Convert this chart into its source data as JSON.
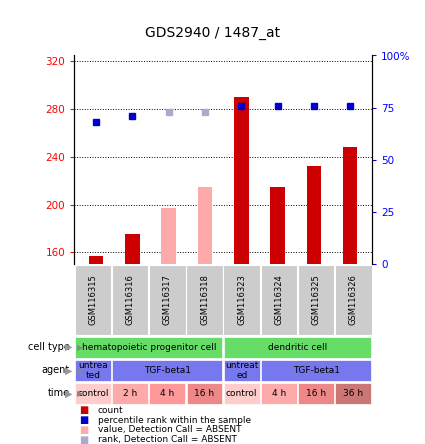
{
  "title": "GDS2940 / 1487_at",
  "samples": [
    "GSM116315",
    "GSM116316",
    "GSM116317",
    "GSM116318",
    "GSM116323",
    "GSM116324",
    "GSM116325",
    "GSM116326"
  ],
  "bar_values": [
    157,
    175,
    197,
    215,
    290,
    215,
    232,
    248
  ],
  "bar_absent": [
    false,
    false,
    true,
    true,
    false,
    false,
    false,
    false
  ],
  "rank_values": [
    68,
    71,
    73,
    73,
    76,
    76,
    76,
    76
  ],
  "rank_absent": [
    false,
    false,
    true,
    true,
    false,
    false,
    false,
    false
  ],
  "ylim_left": [
    150,
    325
  ],
  "ylim_right": [
    0,
    100
  ],
  "yticks_left": [
    160,
    200,
    240,
    280,
    320
  ],
  "ytick_labels_left": [
    "160",
    "200",
    "240",
    "280",
    "320"
  ],
  "yticks_right": [
    0,
    25,
    50,
    75,
    100
  ],
  "ytick_labels_right": [
    "0",
    "25",
    "50",
    "75",
    "100%"
  ],
  "bar_color_present": "#cc0000",
  "bar_color_absent": "#ffaaaa",
  "rank_color_present": "#0000cc",
  "rank_color_absent": "#aaaacc",
  "cell_type_groups": [
    {
      "text": "hematopoietic progenitor cell",
      "span": 4,
      "color": "#66dd66"
    },
    {
      "text": "dendritic cell",
      "span": 4,
      "color": "#66dd66"
    }
  ],
  "agent_groups": [
    {
      "text": "untrea\nted",
      "span": 1,
      "color": "#7777ee"
    },
    {
      "text": "TGF-beta1",
      "span": 3,
      "color": "#7777ee"
    },
    {
      "text": "untreat\ned",
      "span": 1,
      "color": "#7777ee"
    },
    {
      "text": "TGF-beta1",
      "span": 3,
      "color": "#7777ee"
    }
  ],
  "time_groups": [
    {
      "text": "control",
      "span": 1,
      "color": "#ffcccc"
    },
    {
      "text": "2 h",
      "span": 1,
      "color": "#ffaaaa"
    },
    {
      "text": "4 h",
      "span": 1,
      "color": "#ff9999"
    },
    {
      "text": "16 h",
      "span": 1,
      "color": "#ee8888"
    },
    {
      "text": "control",
      "span": 1,
      "color": "#ffcccc"
    },
    {
      "text": "4 h",
      "span": 1,
      "color": "#ffaaaa"
    },
    {
      "text": "16 h",
      "span": 1,
      "color": "#ee8888"
    },
    {
      "text": "36 h",
      "span": 1,
      "color": "#cc7777"
    }
  ],
  "legend_items": [
    {
      "color": "#cc0000",
      "label": "count"
    },
    {
      "color": "#0000cc",
      "label": "percentile rank within the sample"
    },
    {
      "color": "#ffaaaa",
      "label": "value, Detection Call = ABSENT"
    },
    {
      "color": "#aaaacc",
      "label": "rank, Detection Call = ABSENT"
    }
  ]
}
